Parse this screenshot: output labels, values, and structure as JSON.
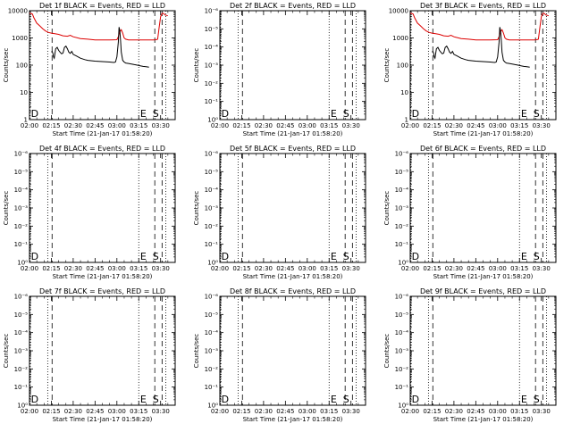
{
  "figure": {
    "colors": {
      "events": "#000000",
      "lld": "#dd0000",
      "axes": "#000000",
      "background": "#ffffff"
    }
  },
  "chart_data": [
    {
      "type": "line",
      "title": "Det 1f BLACK = Events, RED = LLD",
      "xlabel": "Start Time (21-Jan-17 01:58:20)",
      "ylabel": "Counts/sec",
      "x_ticks": [
        "02:00",
        "02:15",
        "02:30",
        "02:45",
        "03:00",
        "03:15",
        "03:30"
      ],
      "x_range_min": [
        0,
        100
      ],
      "y_scale": "log",
      "ylim": [
        1,
        10000
      ],
      "y_ticks": [
        "1",
        "10",
        "100",
        "1000",
        "10000"
      ],
      "vlines": {
        "dotted": [
          0.5,
          12.5,
          75.0,
          93.5
        ],
        "dashed": [
          15.5,
          86.0,
          91.0
        ]
      },
      "markers": [
        "D",
        "E",
        "S"
      ],
      "marker_minutes": [
        1.0,
        76.0,
        84.5
      ],
      "series": [
        {
          "name": "LLD",
          "color": "#dd0000",
          "x": [
            0,
            1,
            2,
            3,
            5,
            7,
            9,
            11,
            13,
            15,
            17,
            20,
            23,
            26,
            28,
            30,
            35,
            40,
            45,
            50,
            55,
            60,
            61,
            62,
            63,
            64,
            65,
            66,
            68,
            70,
            75,
            80,
            85,
            87,
            88,
            89,
            90,
            91,
            92,
            93,
            95
          ],
          "y": [
            8000,
            8000,
            7500,
            5500,
            3500,
            2800,
            2200,
            1800,
            1600,
            1500,
            1450,
            1350,
            1200,
            1150,
            1250,
            1100,
            950,
            900,
            850,
            850,
            850,
            860,
            1100,
            1700,
            2000,
            1500,
            1000,
            900,
            850,
            850,
            850,
            840,
            850,
            860,
            900,
            2500,
            6000,
            8000,
            8000,
            7000,
            6500
          ]
        },
        {
          "name": "Events",
          "color": "#000000",
          "x": [
            15,
            15.5,
            16,
            16.5,
            17,
            18,
            19,
            20,
            21,
            22,
            23,
            24,
            25,
            26,
            27,
            28,
            29,
            30,
            32,
            35,
            38,
            40,
            45,
            50,
            55,
            58,
            59,
            60,
            61,
            61.5,
            62,
            62.5,
            63,
            64,
            65,
            66,
            68,
            70,
            72,
            74,
            76,
            78,
            80,
            82
          ],
          "y": [
            300,
            320,
            280,
            200,
            180,
            400,
            450,
            350,
            300,
            260,
            280,
            450,
            500,
            400,
            300,
            270,
            320,
            250,
            220,
            180,
            160,
            150,
            140,
            135,
            130,
            125,
            130,
            200,
            700,
            2500,
            1800,
            800,
            300,
            150,
            130,
            120,
            115,
            110,
            105,
            100,
            95,
            90,
            88,
            85
          ]
        }
      ]
    },
    {
      "type": "line",
      "title": "Det 2f BLACK = Events, RED = LLD",
      "xlabel": "Start Time (21-Jan-17 01:58:20)",
      "ylabel": "Counts/sec",
      "x_ticks": [
        "02:00",
        "02:15",
        "02:30",
        "02:45",
        "03:00",
        "03:15",
        "03:30"
      ],
      "x_range_min": [
        0,
        100
      ],
      "y_scale": "log",
      "ylim": [
        1,
        1e-06
      ],
      "y_ticks": [
        "10⁰",
        "10⁻¹",
        "10⁻²",
        "10⁻³",
        "10⁻⁴",
        "10⁻⁵",
        "10⁻⁶"
      ],
      "vlines": {
        "dotted": [
          0.5,
          12.5,
          75.0,
          93.5
        ],
        "dashed": [
          15.5,
          86.0,
          91.0
        ]
      },
      "markers": [
        "D",
        "E",
        "S"
      ],
      "marker_minutes": [
        1.0,
        76.0,
        84.5
      ],
      "series": []
    },
    {
      "type": "line",
      "title": "Det 3f BLACK = Events, RED = LLD",
      "xlabel": "Start Time (21-Jan-17 01:58:20)",
      "ylabel": "Counts/sec",
      "x_ticks": [
        "02:00",
        "02:15",
        "02:30",
        "02:45",
        "03:00",
        "03:15",
        "03:30"
      ],
      "x_range_min": [
        0,
        100
      ],
      "y_scale": "log",
      "ylim": [
        1,
        10000
      ],
      "y_ticks": [
        "1",
        "10",
        "100",
        "1000",
        "10000"
      ],
      "vlines": {
        "dotted": [
          0.5,
          12.5,
          75.0,
          93.5
        ],
        "dashed": [
          15.5,
          86.0,
          91.0
        ]
      },
      "markers": [
        "D",
        "E",
        "S"
      ],
      "marker_minutes": [
        1.0,
        76.0,
        84.5
      ],
      "series": [
        {
          "name": "LLD",
          "color": "#dd0000",
          "x": [
            0,
            1,
            2,
            3,
            5,
            7,
            9,
            11,
            13,
            15,
            17,
            20,
            23,
            26,
            28,
            30,
            35,
            40,
            45,
            50,
            55,
            60,
            61,
            62,
            63,
            64,
            65,
            66,
            68,
            70,
            75,
            80,
            85,
            87,
            88,
            89,
            90,
            91,
            92,
            93,
            95
          ],
          "y": [
            8000,
            8000,
            7500,
            5500,
            3500,
            2800,
            2200,
            1800,
            1600,
            1500,
            1450,
            1350,
            1200,
            1150,
            1250,
            1100,
            950,
            900,
            850,
            850,
            850,
            860,
            1100,
            1700,
            2000,
            1500,
            1000,
            900,
            850,
            850,
            850,
            840,
            850,
            860,
            900,
            2500,
            6000,
            8000,
            8000,
            7000,
            6500
          ]
        },
        {
          "name": "Events",
          "color": "#000000",
          "x": [
            15,
            15.5,
            16,
            16.5,
            17,
            18,
            19,
            20,
            21,
            22,
            23,
            24,
            25,
            26,
            27,
            28,
            29,
            30,
            32,
            35,
            38,
            40,
            45,
            50,
            55,
            58,
            59,
            60,
            61,
            61.5,
            62,
            62.5,
            63,
            64,
            65,
            66,
            68,
            70,
            72,
            74,
            76,
            78,
            80,
            82
          ],
          "y": [
            300,
            320,
            280,
            200,
            180,
            400,
            450,
            350,
            300,
            260,
            280,
            450,
            500,
            400,
            300,
            270,
            320,
            250,
            220,
            180,
            160,
            150,
            140,
            135,
            130,
            125,
            130,
            200,
            700,
            2500,
            1800,
            800,
            300,
            150,
            130,
            120,
            115,
            110,
            105,
            100,
            95,
            90,
            88,
            85
          ]
        }
      ]
    },
    {
      "type": "line",
      "title": "Det 4f BLACK = Events, RED = LLD",
      "xlabel": "Start Time (21-Jan-17 01:58:20)",
      "ylabel": "Counts/sec",
      "x_ticks": [
        "02:00",
        "02:15",
        "02:30",
        "02:45",
        "03:00",
        "03:15",
        "03:30"
      ],
      "x_range_min": [
        0,
        100
      ],
      "y_scale": "log",
      "ylim": [
        1,
        1e-06
      ],
      "y_ticks": [
        "10⁰",
        "10⁻¹",
        "10⁻²",
        "10⁻³",
        "10⁻⁴",
        "10⁻⁵",
        "10⁻⁶"
      ],
      "vlines": {
        "dotted": [
          0.5,
          12.5,
          75.0,
          93.5
        ],
        "dashed": [
          15.5,
          86.0,
          91.0
        ]
      },
      "markers": [
        "D",
        "E",
        "S"
      ],
      "marker_minutes": [
        1.0,
        76.0,
        84.5
      ],
      "series": []
    },
    {
      "type": "line",
      "title": "Det 5f BLACK = Events, RED = LLD",
      "xlabel": "Start Time (21-Jan-17 01:58:20)",
      "ylabel": "Counts/sec",
      "x_ticks": [
        "02:00",
        "02:15",
        "02:30",
        "02:45",
        "03:00",
        "03:15",
        "03:30"
      ],
      "x_range_min": [
        0,
        100
      ],
      "y_scale": "log",
      "ylim": [
        1,
        1e-06
      ],
      "y_ticks": [
        "10⁰",
        "10⁻¹",
        "10⁻²",
        "10⁻³",
        "10⁻⁴",
        "10⁻⁵",
        "10⁻⁶"
      ],
      "vlines": {
        "dotted": [
          0.5,
          12.5,
          75.0,
          93.5
        ],
        "dashed": [
          15.5,
          86.0,
          91.0
        ]
      },
      "markers": [
        "D",
        "E",
        "S"
      ],
      "marker_minutes": [
        1.0,
        76.0,
        84.5
      ],
      "series": []
    },
    {
      "type": "line",
      "title": "Det 6f BLACK = Events, RED = LLD",
      "xlabel": "Start Time (21-Jan-17 01:58:20)",
      "ylabel": "Counts/sec",
      "x_ticks": [
        "02:00",
        "02:15",
        "02:30",
        "02:45",
        "03:00",
        "03:15",
        "03:30"
      ],
      "x_range_min": [
        0,
        100
      ],
      "y_scale": "log",
      "ylim": [
        1,
        1e-06
      ],
      "y_ticks": [
        "10⁰",
        "10⁻¹",
        "10⁻²",
        "10⁻³",
        "10⁻⁴",
        "10⁻⁵",
        "10⁻⁶"
      ],
      "vlines": {
        "dotted": [
          0.5,
          12.5,
          75.0,
          93.5
        ],
        "dashed": [
          15.5,
          86.0,
          91.0
        ]
      },
      "markers": [
        "D",
        "E",
        "S"
      ],
      "marker_minutes": [
        1.0,
        76.0,
        84.5
      ],
      "series": []
    },
    {
      "type": "line",
      "title": "Det 7f BLACK = Events, RED = LLD",
      "xlabel": "Start Time (21-Jan-17 01:58:20)",
      "ylabel": "Counts/sec",
      "x_ticks": [
        "02:00",
        "02:15",
        "02:30",
        "02:45",
        "03:00",
        "03:15",
        "03:30"
      ],
      "x_range_min": [
        0,
        100
      ],
      "y_scale": "log",
      "ylim": [
        1,
        1e-06
      ],
      "y_ticks": [
        "10⁰",
        "10⁻¹",
        "10⁻²",
        "10⁻³",
        "10⁻⁴",
        "10⁻⁵",
        "10⁻⁶"
      ],
      "vlines": {
        "dotted": [
          0.5,
          12.5,
          75.0,
          93.5
        ],
        "dashed": [
          15.5,
          86.0,
          91.0
        ]
      },
      "markers": [
        "D",
        "E",
        "S"
      ],
      "marker_minutes": [
        1.0,
        76.0,
        84.5
      ],
      "series": []
    },
    {
      "type": "line",
      "title": "Det 8f BLACK = Events, RED = LLD",
      "xlabel": "Start Time (21-Jan-17 01:58:20)",
      "ylabel": "Counts/sec",
      "x_ticks": [
        "02:00",
        "02:15",
        "02:30",
        "02:45",
        "03:00",
        "03:15",
        "03:30"
      ],
      "x_range_min": [
        0,
        100
      ],
      "y_scale": "log",
      "ylim": [
        1,
        1e-06
      ],
      "y_ticks": [
        "10⁰",
        "10⁻¹",
        "10⁻²",
        "10⁻³",
        "10⁻⁴",
        "10⁻⁵",
        "10⁻⁶"
      ],
      "vlines": {
        "dotted": [
          0.5,
          12.5,
          75.0,
          93.5
        ],
        "dashed": [
          15.5,
          86.0,
          91.0
        ]
      },
      "markers": [
        "D",
        "E",
        "S"
      ],
      "marker_minutes": [
        1.0,
        76.0,
        84.5
      ],
      "series": []
    },
    {
      "type": "line",
      "title": "Det 9f BLACK = Events, RED = LLD",
      "xlabel": "Start Time (21-Jan-17 01:58:20)",
      "ylabel": "Counts/sec",
      "x_ticks": [
        "02:00",
        "02:15",
        "02:30",
        "02:45",
        "03:00",
        "03:15",
        "03:30"
      ],
      "x_range_min": [
        0,
        100
      ],
      "y_scale": "log",
      "ylim": [
        1,
        1e-06
      ],
      "y_ticks": [
        "10⁰",
        "10⁻¹",
        "10⁻²",
        "10⁻³",
        "10⁻⁴",
        "10⁻⁵",
        "10⁻⁶"
      ],
      "vlines": {
        "dotted": [
          0.5,
          12.5,
          75.0,
          93.5
        ],
        "dashed": [
          15.5,
          86.0,
          91.0
        ]
      },
      "markers": [
        "D",
        "E",
        "S"
      ],
      "marker_minutes": [
        1.0,
        76.0,
        84.5
      ],
      "series": []
    }
  ]
}
